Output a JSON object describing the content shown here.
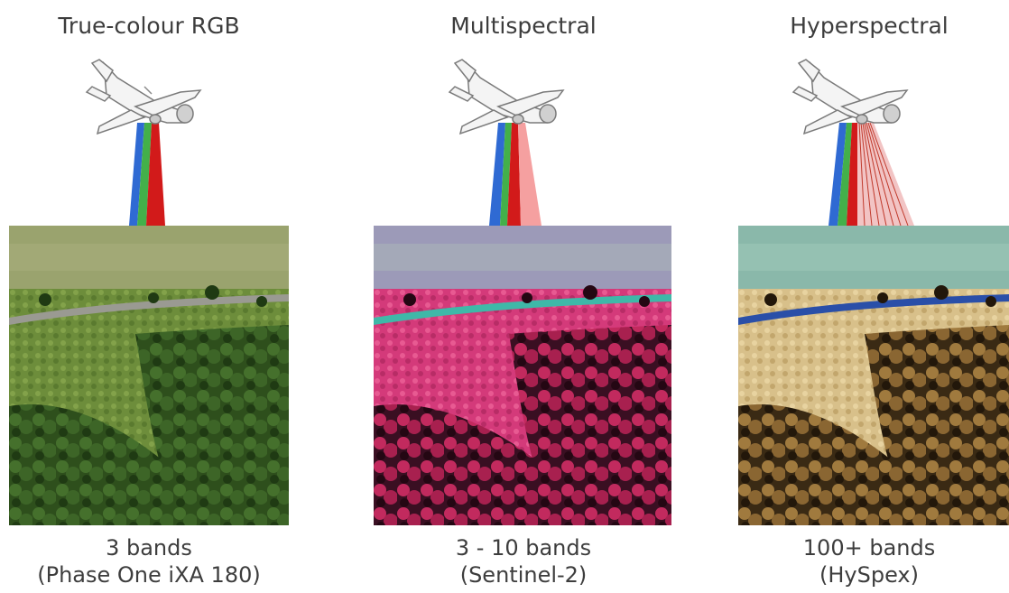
{
  "panels": [
    {
      "title": "True-colour RGB",
      "caption_line1": "3 bands",
      "caption_line2": "(Phase One iXA 180)",
      "beam_colors": [
        "#2f6ad3",
        "#43b04a",
        "#d21a1a"
      ],
      "image_tint": "natural green"
    },
    {
      "title": "Multispectral",
      "caption_line1": "3 - 10 bands",
      "caption_line2": "(Sentinel-2)",
      "beam_colors": [
        "#2f6ad3",
        "#43b04a",
        "#d21a1a",
        "#f5a0a0"
      ],
      "image_tint": "false-colour magenta"
    },
    {
      "title": "Hyperspectral",
      "caption_line1": "100+ bands",
      "caption_line2": "(HySpex)",
      "beam_colors": [
        "#2f6ad3",
        "#43b04a",
        "#d21a1a",
        "#e8a6a6"
      ],
      "image_tint": "false-colour beige"
    }
  ]
}
